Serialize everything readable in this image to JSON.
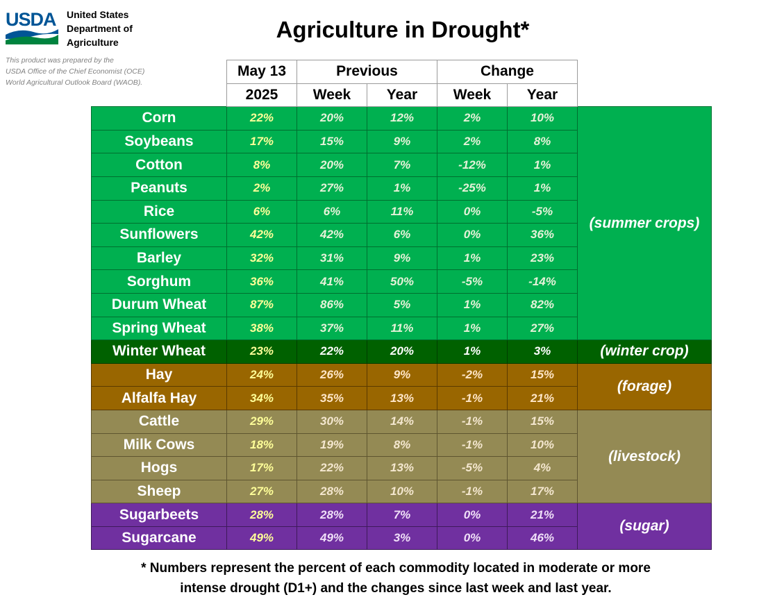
{
  "logo": {
    "text": "USDA",
    "icon": "usda-logo-icon",
    "colors": {
      "text": "#005596",
      "hills_blue": "#005596",
      "hills_green": "#00833f"
    }
  },
  "department": [
    "United States",
    "Department of",
    "Agriculture"
  ],
  "prepared_by": [
    "This product was prepared by the",
    "USDA Office of the Chief Economist (OCE)",
    "World Agricultural Outlook Board (WAOB)."
  ],
  "title": "Agriculture in Drought*",
  "header": {
    "row1": [
      "May 13",
      "Previous",
      "Change"
    ],
    "row2": [
      "2025",
      "Week",
      "Year",
      "Week",
      "Year"
    ]
  },
  "groups": {
    "summer": "(summer crops)",
    "winter": "(winter crop)",
    "forage": "(forage)",
    "livestock": "(livestock)",
    "sugar": "(sugar)"
  },
  "rows": [
    {
      "name": "Corn",
      "current": "22%",
      "prev_week": "20%",
      "prev_year": "12%",
      "chg_week": "2%",
      "chg_year": "10%"
    },
    {
      "name": "Soybeans",
      "current": "17%",
      "prev_week": "15%",
      "prev_year": "9%",
      "chg_week": "2%",
      "chg_year": "8%"
    },
    {
      "name": "Cotton",
      "current": "8%",
      "prev_week": "20%",
      "prev_year": "7%",
      "chg_week": "-12%",
      "chg_year": "1%"
    },
    {
      "name": "Peanuts",
      "current": "2%",
      "prev_week": "27%",
      "prev_year": "1%",
      "chg_week": "-25%",
      "chg_year": "1%"
    },
    {
      "name": "Rice",
      "current": "6%",
      "prev_week": "6%",
      "prev_year": "11%",
      "chg_week": "0%",
      "chg_year": "-5%"
    },
    {
      "name": "Sunflowers",
      "current": "42%",
      "prev_week": "42%",
      "prev_year": "6%",
      "chg_week": "0%",
      "chg_year": "36%"
    },
    {
      "name": "Barley",
      "current": "32%",
      "prev_week": "31%",
      "prev_year": "9%",
      "chg_week": "1%",
      "chg_year": "23%"
    },
    {
      "name": "Sorghum",
      "current": "36%",
      "prev_week": "41%",
      "prev_year": "50%",
      "chg_week": "-5%",
      "chg_year": "-14%"
    },
    {
      "name": "Durum Wheat",
      "current": "87%",
      "prev_week": "86%",
      "prev_year": "5%",
      "chg_week": "1%",
      "chg_year": "82%"
    },
    {
      "name": "Spring Wheat",
      "current": "38%",
      "prev_week": "37%",
      "prev_year": "11%",
      "chg_week": "1%",
      "chg_year": "27%"
    },
    {
      "name": "Winter Wheat",
      "current": "23%",
      "prev_week": "22%",
      "prev_year": "20%",
      "chg_week": "1%",
      "chg_year": "3%"
    },
    {
      "name": "Hay",
      "current": "24%",
      "prev_week": "26%",
      "prev_year": "9%",
      "chg_week": "-2%",
      "chg_year": "15%"
    },
    {
      "name": "Alfalfa Hay",
      "current": "34%",
      "prev_week": "35%",
      "prev_year": "13%",
      "chg_week": "-1%",
      "chg_year": "21%"
    },
    {
      "name": "Cattle",
      "current": "29%",
      "prev_week": "30%",
      "prev_year": "14%",
      "chg_week": "-1%",
      "chg_year": "15%"
    },
    {
      "name": "Milk Cows",
      "current": "18%",
      "prev_week": "19%",
      "prev_year": "8%",
      "chg_week": "-1%",
      "chg_year": "10%"
    },
    {
      "name": "Hogs",
      "current": "17%",
      "prev_week": "22%",
      "prev_year": "13%",
      "chg_week": "-5%",
      "chg_year": "4%"
    },
    {
      "name": "Sheep",
      "current": "27%",
      "prev_week": "28%",
      "prev_year": "10%",
      "chg_week": "-1%",
      "chg_year": "17%"
    },
    {
      "name": "Sugarbeets",
      "current": "28%",
      "prev_week": "28%",
      "prev_year": "7%",
      "chg_week": "0%",
      "chg_year": "21%"
    },
    {
      "name": "Sugarcane",
      "current": "49%",
      "prev_week": "49%",
      "prev_year": "3%",
      "chg_week": "0%",
      "chg_year": "46%"
    }
  ],
  "group_colors": {
    "summer": "#00b050",
    "winter": "#006100",
    "forage": "#996600",
    "livestock": "#948a54",
    "sugar": "#7030a0"
  },
  "footnote": [
    "* Numbers represent the percent of each commodity located in moderate or more",
    "intense drought (D1+) and the changes since last week and last year."
  ]
}
